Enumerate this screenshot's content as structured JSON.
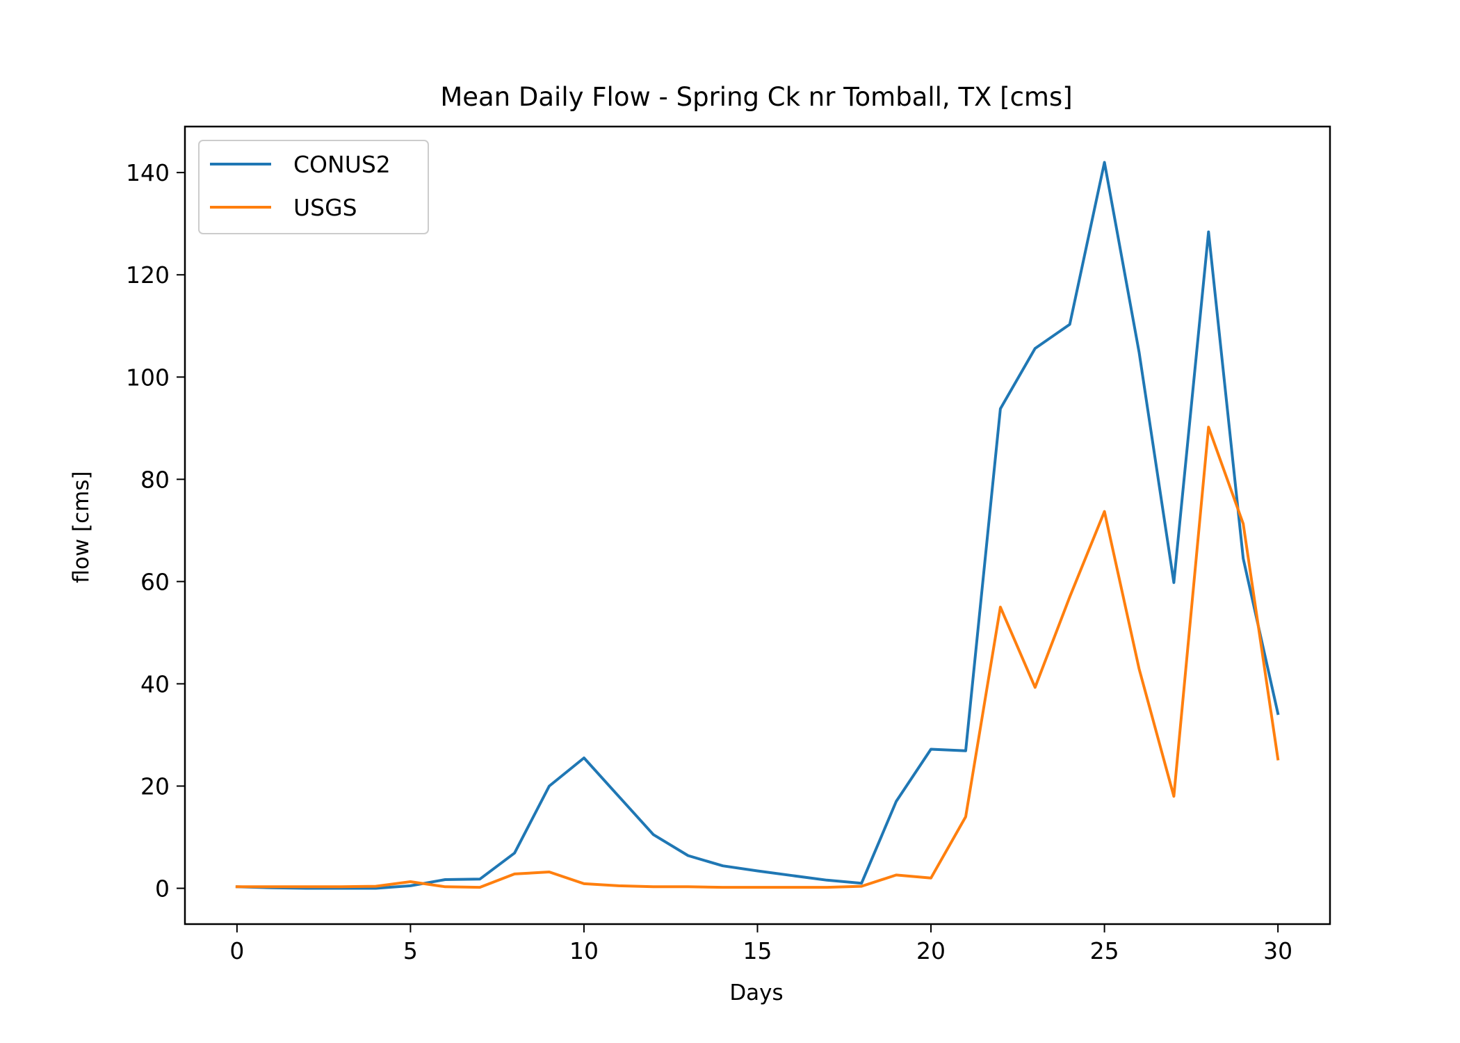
{
  "chart_data": {
    "type": "line",
    "title": "Mean Daily Flow - Spring Ck nr Tomball, TX [cms]",
    "xlabel": "Days",
    "ylabel": "flow [cms]",
    "xlim": [
      -1.5,
      31.5
    ],
    "ylim": [
      -7,
      149
    ],
    "xticks": [
      0,
      5,
      10,
      15,
      20,
      25,
      30
    ],
    "yticks": [
      0,
      20,
      40,
      60,
      80,
      100,
      120,
      140
    ],
    "grid": false,
    "legend": "top-left",
    "x": [
      0,
      1,
      2,
      3,
      4,
      5,
      6,
      7,
      8,
      9,
      10,
      11,
      12,
      13,
      14,
      15,
      16,
      17,
      18,
      19,
      20,
      21,
      22,
      23,
      24,
      25,
      26,
      27,
      28,
      29,
      30
    ],
    "series": [
      {
        "name": "CONUS2",
        "color": "#1f77b4",
        "values": [
          0.3,
          0.1,
          0.0,
          0.0,
          0.0,
          0.5,
          1.7,
          1.8,
          6.9,
          20.0,
          25.5,
          18.0,
          10.5,
          6.4,
          4.4,
          3.4,
          2.5,
          1.6,
          1.0,
          17.0,
          27.2,
          26.9,
          93.8,
          105.6,
          110.3,
          142.0,
          104.8,
          59.8,
          128.4,
          64.5,
          34.2
        ]
      },
      {
        "name": "USGS",
        "color": "#ff7f0e",
        "values": [
          0.3,
          0.3,
          0.3,
          0.3,
          0.4,
          1.3,
          0.3,
          0.2,
          2.8,
          3.2,
          0.9,
          0.5,
          0.3,
          0.3,
          0.2,
          0.2,
          0.2,
          0.2,
          0.4,
          2.6,
          2.0,
          14.0,
          55.0,
          39.3,
          57.0,
          73.7,
          42.9,
          18.0,
          90.2,
          71.3,
          25.3
        ]
      }
    ]
  }
}
